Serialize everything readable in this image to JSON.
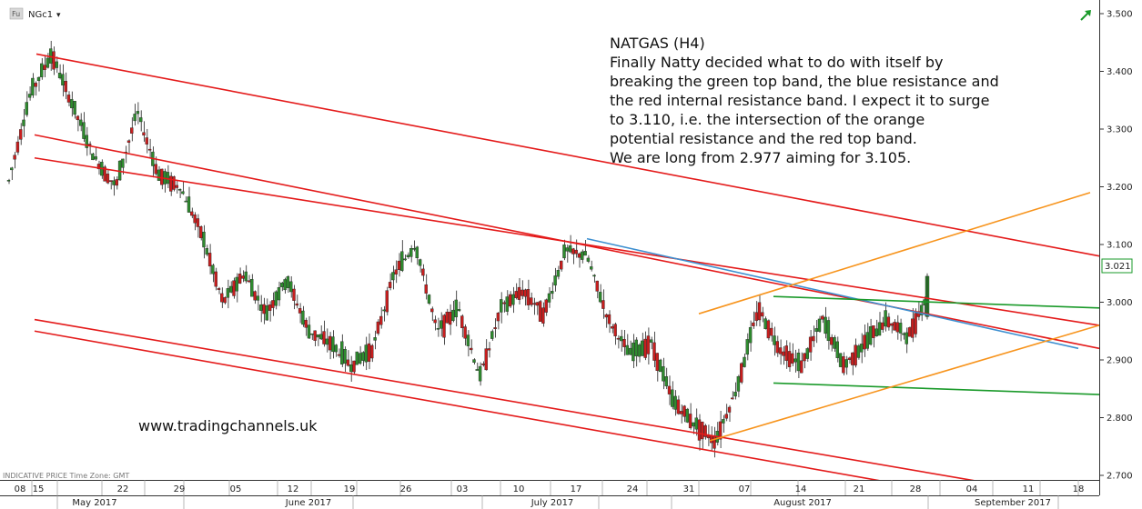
{
  "header": {
    "badge": "Fu",
    "symbol": "NGc1",
    "dropdown_glyph": "▾"
  },
  "annotation": {
    "lines": [
      "NATGAS (H4)",
      "Finally Natty decided what to do with itself by",
      "breaking the green top band, the blue resistance and",
      "the red internal resistance band. I expect it to surge",
      "to 3.110, i.e. the intersection of the orange",
      "potential resistance and the red top band.",
      " We are long from 2.977 aiming for 3.105."
    ]
  },
  "watermark": "www.tradingchannels.uk",
  "footer_note": "INDICATIVE PRICE   Time Zone: GMT",
  "last_price": "3.021",
  "colors": {
    "up_candle": "#2e8b2e",
    "down_candle": "#c81e1e",
    "red_channel": "#e41a1a",
    "orange_channel": "#f7941d",
    "green_band": "#1a9a2a",
    "blue_resistance": "#3d8fd0",
    "price_flag": "#1a9a2a"
  },
  "chart_data": {
    "type": "candlestick",
    "title": "NATGAS (H4)",
    "symbol": "NGc1",
    "y_ticks": [
      "3.500",
      "3.400",
      "3.300",
      "3.200",
      "3.100",
      "3.000",
      "2.900",
      "2.800",
      "2.700"
    ],
    "ylim": [
      2.68,
      3.51
    ],
    "x_day_labels": [
      "08",
      "15",
      "22",
      "29",
      "05",
      "12",
      "19",
      "26",
      "03",
      "10",
      "17",
      "24",
      "31",
      "07",
      "14",
      "21",
      "28",
      "04",
      "11",
      "18"
    ],
    "months": [
      "May 2017",
      "June 2017",
      "July 2017",
      "August 2017",
      "September 2017"
    ],
    "last_price": 3.021,
    "entry": 2.977,
    "target": 3.105,
    "grid": false,
    "price_path": [
      [
        "08",
        3.21
      ],
      [
        "08",
        3.36
      ],
      [
        "15",
        3.43
      ],
      [
        "15",
        3.34
      ],
      [
        "15",
        3.25
      ],
      [
        "22",
        3.2
      ],
      [
        "22",
        3.33
      ],
      [
        "22",
        3.22
      ],
      [
        "29",
        3.2
      ],
      [
        "29",
        3.12
      ],
      [
        "29",
        3.0
      ],
      [
        "05",
        3.05
      ],
      [
        "05",
        2.98
      ],
      [
        "12",
        3.04
      ],
      [
        "12",
        2.95
      ],
      [
        "12",
        2.93
      ],
      [
        "19",
        2.89
      ],
      [
        "19",
        2.92
      ],
      [
        "26",
        3.05
      ],
      [
        "26",
        3.1
      ],
      [
        "26",
        2.95
      ],
      [
        "03",
        2.99
      ],
      [
        "03",
        2.87
      ],
      [
        "10",
        2.99
      ],
      [
        "10",
        3.02
      ],
      [
        "10",
        2.98
      ],
      [
        "17",
        3.09
      ],
      [
        "17",
        3.08
      ],
      [
        "24",
        2.97
      ],
      [
        "24",
        2.91
      ],
      [
        "24",
        2.93
      ],
      [
        "31",
        2.83
      ],
      [
        "31",
        2.79
      ],
      [
        "31",
        2.76
      ],
      [
        "07",
        2.85
      ],
      [
        "07",
        2.99
      ],
      [
        "14",
        2.92
      ],
      [
        "14",
        2.89
      ],
      [
        "21",
        2.97
      ],
      [
        "21",
        2.89
      ],
      [
        "28",
        2.93
      ],
      [
        "28",
        2.97
      ],
      [
        "28",
        2.94
      ],
      [
        "28",
        3.021
      ]
    ],
    "trend_lines": [
      {
        "color": "red",
        "from": [
          "15",
          3.43
        ],
        "to": [
          "18",
          3.08
        ]
      },
      {
        "color": "red",
        "from": [
          "15",
          3.29
        ],
        "to": [
          "18",
          2.92
        ]
      },
      {
        "color": "red",
        "from": [
          "15",
          3.25
        ],
        "to": [
          "18",
          2.96
        ]
      },
      {
        "color": "red",
        "from": [
          "15",
          2.97
        ],
        "to": [
          "18",
          2.66
        ]
      },
      {
        "color": "red",
        "from": [
          "15",
          2.95
        ],
        "to": [
          "18",
          2.63
        ]
      },
      {
        "color": "blue",
        "from": [
          "17",
          3.11
        ],
        "to": [
          "18",
          2.92
        ]
      },
      {
        "color": "green",
        "from": [
          "07",
          3.01
        ],
        "to": [
          "18",
          2.99
        ]
      },
      {
        "color": "green",
        "from": [
          "07",
          2.86
        ],
        "to": [
          "18",
          2.84
        ]
      },
      {
        "color": "orange",
        "from": [
          "07",
          2.98
        ],
        "to": [
          "18",
          3.19
        ]
      },
      {
        "color": "orange",
        "from": [
          "31",
          2.76
        ],
        "to": [
          "18",
          2.96
        ]
      }
    ]
  }
}
